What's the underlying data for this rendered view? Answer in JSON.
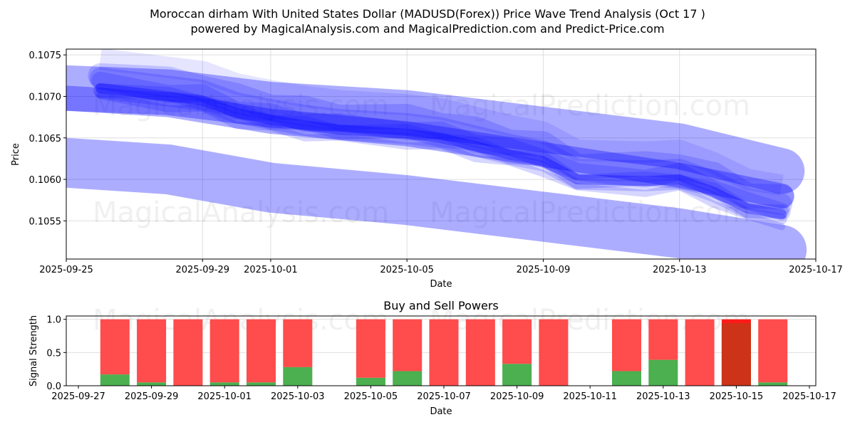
{
  "title_line1": "Moroccan dirham With United States Dollar (MADUSD(Forex)) Price Wave Trend Analysis (Oct 17 )",
  "title_line2": "powered by MagicalAnalysis.com and MagicalPrediction.com and Predict-Price.com",
  "watermarks": [
    "MagicalAnalysis.com",
    "MagicalPrediction.com"
  ],
  "colors": {
    "band": "#0000ff",
    "buy": "#4caf50",
    "sell": "#ff4c4c",
    "sell_strong": "#cc3318",
    "sell_top": "#ff1a1a"
  },
  "chart_data": [
    {
      "type": "area",
      "title": "",
      "xlabel": "Date",
      "ylabel": "Price",
      "x_ticks": [
        "2025-09-25",
        "2025-09-29",
        "2025-10-01",
        "2025-10-05",
        "2025-10-09",
        "2025-10-13",
        "2025-10-17"
      ],
      "y_ticks": [
        "0.1055",
        "0.1060",
        "0.1065",
        "0.1070",
        "0.1075"
      ],
      "xlim": [
        "2025-09-25",
        "2025-10-17"
      ],
      "ylim": [
        0.10504,
        0.10757
      ],
      "grid": true,
      "center_line": {
        "x": [
          "2025-09-26",
          "2025-09-28",
          "2025-09-29",
          "2025-09-30",
          "2025-10-01",
          "2025-10-02",
          "2025-10-03",
          "2025-10-05",
          "2025-10-06",
          "2025-10-07",
          "2025-10-08",
          "2025-10-09",
          "2025-10-10",
          "2025-10-12",
          "2025-10-13",
          "2025-10-14",
          "2025-10-15",
          "2025-10-16"
        ],
        "y": [
          0.1071,
          0.107,
          0.10695,
          0.1068,
          0.10672,
          0.10665,
          0.1066,
          0.10655,
          0.1065,
          0.1064,
          0.1063,
          0.10622,
          0.106,
          0.10598,
          0.106,
          0.10585,
          0.10565,
          0.10558
        ]
      },
      "series": [
        {
          "name": "wave-upper",
          "x": [
            "2025-09-25",
            "2025-09-28",
            "2025-10-01",
            "2025-10-05",
            "2025-10-09",
            "2025-10-13",
            "2025-10-16"
          ],
          "y": [
            0.1071,
            0.10705,
            0.1069,
            0.1068,
            0.1066,
            0.1064,
            0.1061
          ],
          "width": 0.00055
        },
        {
          "name": "wave-mid",
          "x": [
            "2025-09-25",
            "2025-09-28",
            "2025-10-01",
            "2025-10-05",
            "2025-10-09",
            "2025-10-13",
            "2025-10-16"
          ],
          "y": [
            0.10698,
            0.1069,
            0.1067,
            0.10655,
            0.1063,
            0.10605,
            0.1058
          ],
          "width": 0.0003
        },
        {
          "name": "wave-lower",
          "x": [
            "2025-09-25",
            "2025-09-28",
            "2025-10-01",
            "2025-10-05",
            "2025-10-09",
            "2025-10-13",
            "2025-10-16"
          ],
          "y": [
            0.1062,
            0.10612,
            0.1059,
            0.10575,
            0.10555,
            0.10535,
            0.10515
          ],
          "width": 0.0006
        }
      ]
    },
    {
      "type": "bar",
      "title": "Buy and Sell Powers",
      "xlabel": "Date",
      "ylabel": "Signal Strength",
      "x_ticks": [
        "2025-09-27",
        "2025-09-29",
        "2025-10-01",
        "2025-10-03",
        "2025-10-05",
        "2025-10-07",
        "2025-10-09",
        "2025-10-11",
        "2025-10-13",
        "2025-10-15",
        "2025-10-17"
      ],
      "y_ticks": [
        "0.0",
        "0.5",
        "1.0"
      ],
      "ylim": [
        0,
        1.05
      ],
      "grid": true,
      "categories": [
        "2025-09-28",
        "2025-09-29",
        "2025-09-30",
        "2025-10-01",
        "2025-10-02",
        "2025-10-03",
        "2025-10-05",
        "2025-10-06",
        "2025-10-07",
        "2025-10-08",
        "2025-10-09",
        "2025-10-10",
        "2025-10-12",
        "2025-10-13",
        "2025-10-14",
        "2025-10-15",
        "2025-10-16"
      ],
      "series": [
        {
          "name": "Buy",
          "values": [
            0.17,
            0.05,
            0.0,
            0.05,
            0.05,
            0.28,
            0.12,
            0.22,
            0.0,
            0.0,
            0.33,
            0.0,
            0.22,
            0.39,
            0.0,
            0.0,
            0.05
          ]
        },
        {
          "name": "Sell",
          "values": [
            0.83,
            0.95,
            1.0,
            0.95,
            0.95,
            0.72,
            0.88,
            0.78,
            1.0,
            1.0,
            0.67,
            1.0,
            0.78,
            0.61,
            1.0,
            1.0,
            0.95
          ]
        }
      ],
      "strong_sell_dates": [
        "2025-10-15"
      ]
    }
  ]
}
